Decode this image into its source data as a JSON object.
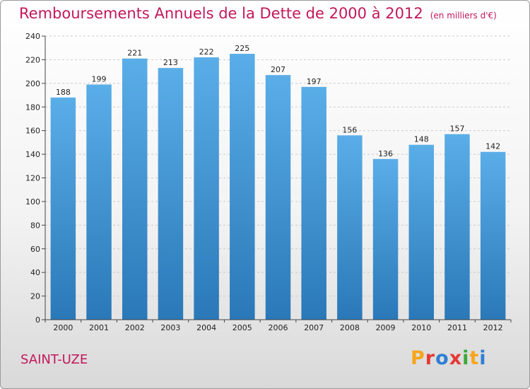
{
  "header": {
    "title": "Remboursements Annuels de la Dette de 2000 à 2012",
    "subtitle": "(en milliers d'€)"
  },
  "footer": {
    "commune": "SAINT-UZE",
    "logo_letters": [
      "P",
      "r",
      "o",
      "x",
      "i",
      "t",
      "i"
    ],
    "logo_colors": [
      "#f7a51c",
      "#e53935",
      "#2e7fd6",
      "#e53935",
      "#39a935",
      "#f7a51c",
      "#2e7fd6"
    ]
  },
  "colors": {
    "bar_top": "#5aaee8",
    "bar_bottom": "#2a78b8",
    "title": "#c2185b"
  },
  "chart_data": {
    "type": "bar",
    "categories": [
      "2000",
      "2001",
      "2002",
      "2003",
      "2004",
      "2005",
      "2006",
      "2007",
      "2008",
      "2009",
      "2010",
      "2011",
      "2012"
    ],
    "values": [
      188,
      199,
      221,
      213,
      222,
      225,
      207,
      197,
      156,
      136,
      148,
      157,
      142
    ],
    "ylim": [
      0,
      240
    ],
    "yticks": [
      0,
      20,
      40,
      60,
      80,
      100,
      120,
      140,
      160,
      180,
      200,
      220,
      240
    ],
    "grid": true,
    "legend": "none"
  }
}
